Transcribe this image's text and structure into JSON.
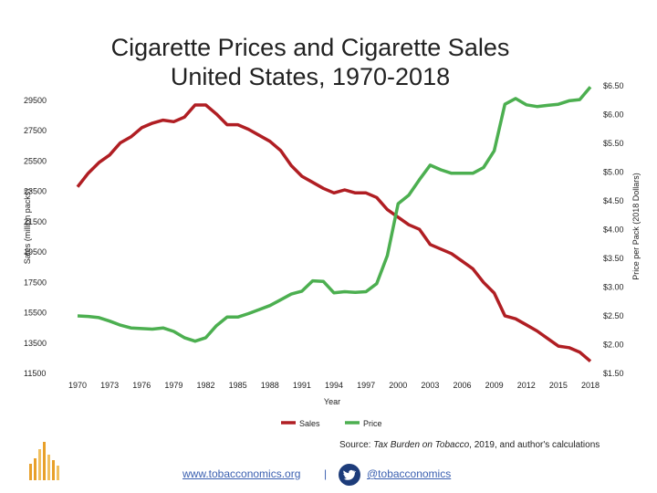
{
  "title_line1": "Cigarette Prices and Cigarette Sales",
  "title_line2": "United States, 1970-2018",
  "footer": {
    "source_prefix": "Source: ",
    "source_italic": "Tax Burden on Tobacco",
    "source_suffix": ", 2019, and author's calculations",
    "website": "www.tobacconomics.org",
    "separator": "|",
    "handle": "@tobacconomics"
  },
  "colors": {
    "sales": "#b01e23",
    "price": "#4caf50",
    "text": "#222222",
    "link": "#3a5fb0"
  },
  "chart_data": {
    "type": "line",
    "xlabel": "Year",
    "ylabel_left": "Sales (million packs)",
    "ylabel_right": "Price per Pack (2018 Dollars)",
    "x_ticks": [
      "1970",
      "1973",
      "1976",
      "1979",
      "1982",
      "1985",
      "1988",
      "1991",
      "1994",
      "1997",
      "2000",
      "2003",
      "2006",
      "2009",
      "2012",
      "2015",
      "2018"
    ],
    "left_ticks": [
      "29500",
      "27500",
      "25500",
      "23500",
      "21500",
      "19500",
      "17500",
      "15500",
      "13500",
      "11500"
    ],
    "right_ticks": [
      "$6.50",
      "$6.00",
      "$5.50",
      "$5.00",
      "$4.50",
      "$4.00",
      "$3.50",
      "$3.00",
      "$2.50",
      "$2.00",
      "$1.50"
    ],
    "left_range": [
      11500,
      29500
    ],
    "right_range": [
      1.5,
      6.5
    ],
    "x_range": [
      1970,
      2018
    ],
    "legend": [
      "Sales",
      "Price"
    ],
    "years": [
      1970,
      1971,
      1972,
      1973,
      1974,
      1975,
      1976,
      1977,
      1978,
      1979,
      1980,
      1981,
      1982,
      1983,
      1984,
      1985,
      1986,
      1987,
      1988,
      1989,
      1990,
      1991,
      1992,
      1993,
      1994,
      1995,
      1996,
      1997,
      1998,
      1999,
      2000,
      2001,
      2002,
      2003,
      2004,
      2005,
      2006,
      2007,
      2008,
      2009,
      2010,
      2011,
      2012,
      2013,
      2014,
      2015,
      2016,
      2017,
      2018
    ],
    "series": [
      {
        "name": "Sales",
        "axis": "left",
        "values": [
          23800,
          24700,
          25400,
          25900,
          26700,
          27100,
          27700,
          28000,
          28200,
          28100,
          28400,
          29200,
          29200,
          28600,
          27900,
          27900,
          27600,
          27200,
          26800,
          26200,
          25200,
          24500,
          24100,
          23700,
          23400,
          23600,
          23400,
          23400,
          23100,
          22300,
          21800,
          21300,
          21000,
          20000,
          19700,
          19400,
          18900,
          18400,
          17500,
          16800,
          15300,
          15100,
          14700,
          14300,
          13800,
          13300,
          13200,
          12900,
          12300
        ]
      },
      {
        "name": "Price",
        "axis": "left_none",
        "right_values": [
          2.5,
          2.49,
          2.47,
          2.41,
          2.34,
          2.29,
          2.28,
          2.27,
          2.29,
          2.23,
          2.12,
          2.06,
          2.12,
          2.33,
          2.48,
          2.48,
          2.54,
          2.61,
          2.68,
          2.78,
          2.88,
          2.93,
          3.11,
          3.1,
          2.9,
          2.92,
          2.91,
          2.92,
          3.06,
          3.55,
          4.45,
          4.6,
          4.87,
          5.12,
          5.04,
          4.98,
          4.98,
          4.98,
          5.08,
          5.37,
          6.18,
          6.28,
          6.17,
          6.14,
          6.16,
          6.18,
          6.24,
          6.26,
          6.48
        ]
      }
    ]
  }
}
